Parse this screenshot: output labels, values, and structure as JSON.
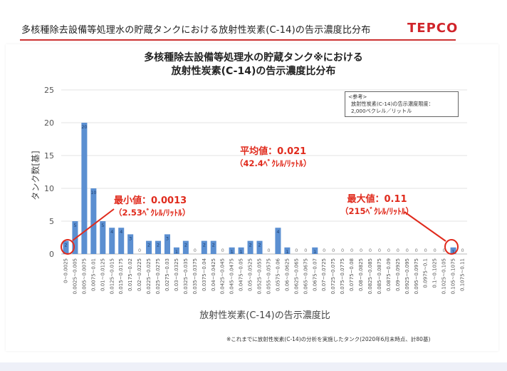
{
  "header": {
    "title": "多核種除去設備等処理水の貯蔵タンクにおける放射性炭素(C-14)の告示濃度比分布",
    "logo": "TEPCO",
    "logo_color": "#d0242a"
  },
  "chart_title_line1": "多核種除去設備等処理水の貯蔵タンク※における",
  "chart_title_line2": "放射性炭素(C-14)の告示濃度比分布",
  "reference": {
    "line1": "<参考>",
    "line2": "放射性炭素(C-14)の告示濃度限度：",
    "line3": "2,000ベクレル／リットル"
  },
  "annotations": {
    "average_label": "平均値：0.021",
    "average_sub": "（42.4ﾍﾞｸﾚﾙ/ﾘｯﾄﾙ）",
    "min_label": "最小値：0.0013",
    "min_sub": "（2.53ﾍﾞｸﾚﾙ/ﾘｯﾄﾙ）",
    "max_label": "最大値：0.11",
    "max_sub": "（215ﾍﾞｸﾚﾙ/ﾘｯﾄﾙ）",
    "color": "#e02a1c"
  },
  "footnote": "※これまでに放射性炭素(C-14)の分析を実施したタンク(2020年6月末時点、計80基)",
  "chart_data": {
    "type": "bar",
    "title": "",
    "xlabel": "放射性炭素(C-14)の告示濃度比",
    "ylabel": "タンク数[基]",
    "ylim": [
      0,
      25
    ],
    "yticks": [
      0,
      5,
      10,
      15,
      20,
      25
    ],
    "bar_color": "#5b8fd1",
    "categories": [
      "0~0.0025",
      "0.0025~0.005",
      "0.005~0.0075",
      "0.0075~0.01",
      "0.01~0.0125",
      "0.0125~0.015",
      "0.015~0.0175",
      "0.0175~0.02",
      "0.02~0.0225",
      "0.0225~0.025",
      "0.025~0.0275",
      "0.0275~0.03",
      "0.03~0.0325",
      "0.0325~0.035",
      "0.035~0.0375",
      "0.0375~0.04",
      "0.04~0.0425",
      "0.0425~0.045",
      "0.045~0.0475",
      "0.0475~0.05",
      "0.05~0.0525",
      "0.0525~0.055",
      "0.055~0.0575",
      "0.0575~0.06",
      "0.06~0.0625",
      "0.0625~0.065",
      "0.065~0.0675",
      "0.0675~0.07",
      "0.07~0.0725",
      "0.0725~0.075",
      "0.075~0.0775",
      "0.0775~0.08",
      "0.08~0.0825",
      "0.0825~0.085",
      "0.085~0.0875",
      "0.0875~0.09",
      "0.09~0.0925",
      "0.0925~0.095",
      "0.095~0.0975",
      "0.0975~0.1",
      "0.1~0.1025",
      "0.1025~0.105",
      "0.105~0.1075",
      "0.1075~0.11"
    ],
    "values": [
      2,
      5,
      20,
      10,
      5,
      4,
      4,
      3,
      0,
      2,
      2,
      3,
      1,
      2,
      0,
      2,
      2,
      0,
      1,
      1,
      2,
      2,
      0,
      4,
      1,
      0,
      0,
      1,
      0,
      0,
      0,
      0,
      0,
      0,
      0,
      0,
      0,
      0,
      0,
      0,
      0,
      0,
      1,
      0
    ],
    "data_labels": [
      "2",
      "5",
      "20",
      "10",
      "5",
      "4",
      "4",
      "3",
      "0",
      "2",
      "2",
      "3",
      "1",
      "2",
      "0",
      "2",
      "2",
      "0",
      "1",
      "1",
      "2",
      "2",
      "0",
      "4",
      "1",
      "0",
      "0",
      "1",
      "0",
      "0",
      "0",
      "0",
      "0",
      "0",
      "0",
      "0",
      "0",
      "0",
      "0",
      "0",
      "0",
      "0",
      "1",
      "0"
    ]
  }
}
